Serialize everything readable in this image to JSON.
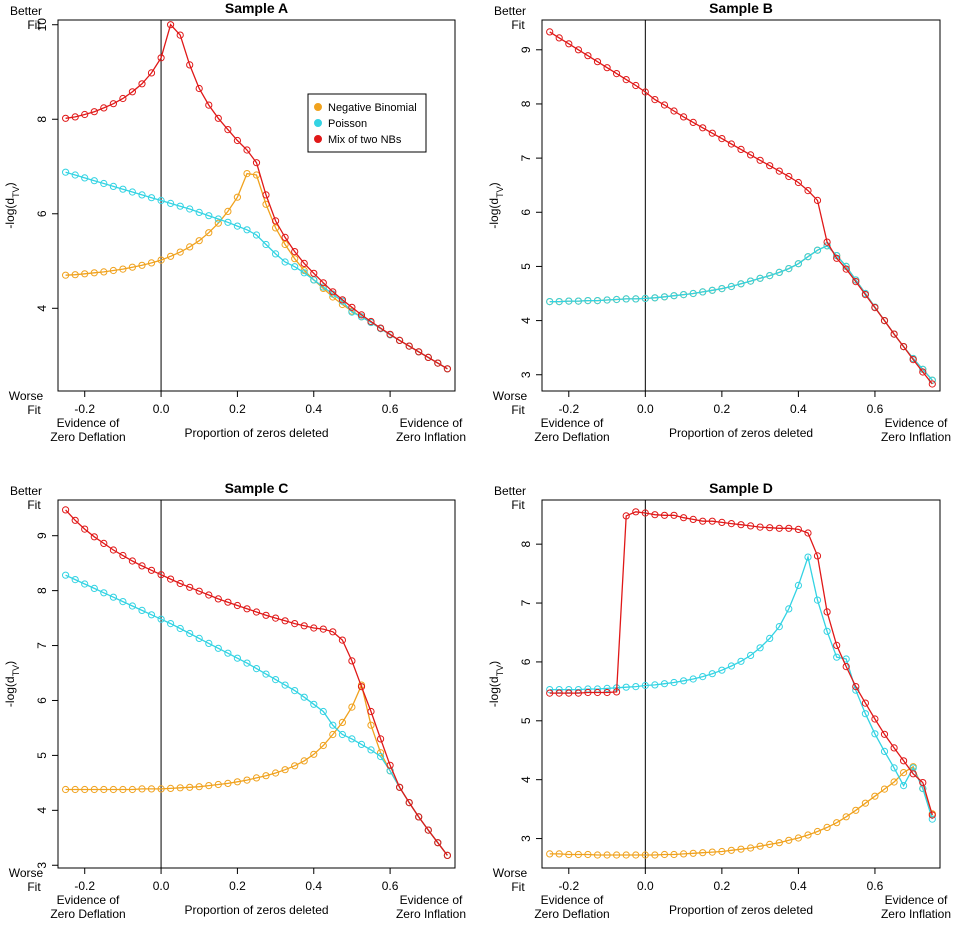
{
  "figure": {
    "better_fit": [
      "Better",
      "Fit"
    ],
    "worse_fit": [
      "Worse",
      "Fit"
    ],
    "ylabel_main": "-log(d",
    "ylabel_sub": "TV",
    "ylabel_close": ")",
    "xlabel": "Proportion of zeros deleted",
    "left_note": [
      "Evidence of",
      "Zero Deflation"
    ],
    "right_note": [
      "Evidence of",
      "Zero Inflation"
    ]
  },
  "legend": {
    "entries": [
      {
        "label": "Negative Binomial",
        "color": "#F0A21E"
      },
      {
        "label": "Poisson",
        "color": "#33D3E3"
      },
      {
        "label": "Mix of two NBs",
        "color": "#E01818"
      }
    ]
  },
  "chart_data": [
    {
      "type": "line",
      "title": "Sample  A",
      "xlabel": "Proportion of zeros deleted",
      "ylabel": "-log(dTV)",
      "xlim": [
        -0.27,
        0.77
      ],
      "ylim": [
        2.25,
        10.1
      ],
      "xticks": [
        -0.2,
        0.0,
        0.2,
        0.4,
        0.6
      ],
      "xtick_labels": [
        "-0.2",
        "0.0",
        "0.2",
        "0.4",
        "0.6"
      ],
      "yticks": [
        4,
        6,
        8,
        10
      ],
      "ytick_labels": [
        "4",
        "6",
        "8",
        "10"
      ],
      "legend": true,
      "series": [
        {
          "name": "Negative Binomial",
          "color": "#F0A21E",
          "x_start": -0.25,
          "x_step": 0.025,
          "values": [
            4.7,
            4.71,
            4.73,
            4.75,
            4.77,
            4.8,
            4.83,
            4.87,
            4.91,
            4.96,
            5.02,
            5.1,
            5.19,
            5.3,
            5.43,
            5.6,
            5.8,
            6.05,
            6.35,
            6.85,
            6.82,
            6.2,
            5.7,
            5.35,
            5.05,
            4.8,
            4.6,
            4.42,
            4.24,
            4.08,
            3.94,
            3.82,
            3.7,
            3.57,
            3.44,
            3.32,
            3.2,
            3.08,
            2.96,
            2.84,
            2.72
          ]
        },
        {
          "name": "Poisson",
          "color": "#33D3E3",
          "x_start": -0.25,
          "x_step": 0.025,
          "values": [
            6.88,
            6.82,
            6.76,
            6.7,
            6.64,
            6.58,
            6.52,
            6.46,
            6.4,
            6.34,
            6.28,
            6.22,
            6.16,
            6.1,
            6.03,
            5.96,
            5.89,
            5.82,
            5.74,
            5.66,
            5.55,
            5.35,
            5.15,
            4.98,
            4.88,
            4.75,
            4.6,
            4.45,
            4.3,
            4.15,
            3.92,
            3.82,
            3.7,
            3.57,
            3.44,
            3.32,
            3.2,
            3.08,
            2.96,
            2.84,
            2.72
          ]
        },
        {
          "name": "Mix of two NBs",
          "color": "#E01818",
          "x_start": -0.25,
          "x_step": 0.025,
          "values": [
            8.02,
            8.05,
            8.1,
            8.16,
            8.24,
            8.33,
            8.44,
            8.58,
            8.75,
            8.98,
            9.3,
            10.0,
            9.78,
            9.15,
            8.65,
            8.3,
            8.02,
            7.78,
            7.55,
            7.35,
            7.08,
            6.4,
            5.85,
            5.5,
            5.2,
            4.95,
            4.74,
            4.54,
            4.35,
            4.18,
            4.02,
            3.86,
            3.72,
            3.58,
            3.45,
            3.32,
            3.2,
            3.08,
            2.96,
            2.84,
            2.72
          ]
        }
      ]
    },
    {
      "type": "line",
      "title": "Sample  B",
      "xlabel": "Proportion of zeros deleted",
      "ylabel": "-log(dTV)",
      "xlim": [
        -0.27,
        0.77
      ],
      "ylim": [
        2.7,
        9.55
      ],
      "xticks": [
        -0.2,
        0.0,
        0.2,
        0.4,
        0.6
      ],
      "xtick_labels": [
        "-0.2",
        "0.0",
        "0.2",
        "0.4",
        "0.6"
      ],
      "yticks": [
        3,
        4,
        5,
        6,
        7,
        8,
        9
      ],
      "ytick_labels": [
        "3",
        "4",
        "5",
        "6",
        "7",
        "8",
        "9"
      ],
      "legend": false,
      "series": [
        {
          "name": "Negative Binomial",
          "color": "#F0A21E",
          "x_start": -0.25,
          "x_step": 0.025,
          "values": [
            4.35,
            4.35,
            4.36,
            4.36,
            4.37,
            4.37,
            4.38,
            4.39,
            4.4,
            4.4,
            4.41,
            4.42,
            4.44,
            4.46,
            4.48,
            4.5,
            4.53,
            4.56,
            4.59,
            4.63,
            4.68,
            4.73,
            4.78,
            4.83,
            4.89,
            4.96,
            5.05,
            5.18,
            5.3,
            5.38,
            5.2,
            5.0,
            4.75,
            4.5,
            4.25,
            4.0,
            3.75,
            3.52,
            3.3,
            3.1,
            2.9
          ]
        },
        {
          "name": "Poisson",
          "color": "#33D3E3",
          "x_start": -0.25,
          "x_step": 0.025,
          "values": [
            4.35,
            4.35,
            4.36,
            4.36,
            4.37,
            4.37,
            4.38,
            4.39,
            4.4,
            4.4,
            4.41,
            4.42,
            4.44,
            4.46,
            4.48,
            4.5,
            4.53,
            4.56,
            4.59,
            4.63,
            4.68,
            4.73,
            4.78,
            4.83,
            4.89,
            4.96,
            5.05,
            5.18,
            5.3,
            5.38,
            5.2,
            5.0,
            4.75,
            4.5,
            4.25,
            4.0,
            3.75,
            3.52,
            3.3,
            3.1,
            2.9
          ]
        },
        {
          "name": "Mix of two NBs",
          "color": "#E01818",
          "x_start": -0.25,
          "x_step": 0.025,
          "values": [
            9.33,
            9.22,
            9.11,
            9.0,
            8.89,
            8.78,
            8.67,
            8.56,
            8.45,
            8.34,
            8.22,
            8.08,
            7.98,
            7.87,
            7.76,
            7.66,
            7.56,
            7.46,
            7.36,
            7.26,
            7.16,
            7.06,
            6.96,
            6.86,
            6.76,
            6.66,
            6.55,
            6.4,
            6.22,
            5.45,
            5.15,
            4.95,
            4.72,
            4.48,
            4.24,
            4.0,
            3.75,
            3.52,
            3.28,
            3.05,
            2.83
          ]
        }
      ]
    },
    {
      "type": "line",
      "title": "Sample  C",
      "xlabel": "Proportion of zeros deleted",
      "ylabel": "-log(dTV)",
      "xlim": [
        -0.27,
        0.77
      ],
      "ylim": [
        2.95,
        9.65
      ],
      "xticks": [
        -0.2,
        0.0,
        0.2,
        0.4,
        0.6
      ],
      "xtick_labels": [
        "-0.2",
        "0.0",
        "0.2",
        "0.4",
        "0.6"
      ],
      "yticks": [
        3,
        4,
        5,
        6,
        7,
        8,
        9
      ],
      "ytick_labels": [
        "3",
        "4",
        "5",
        "6",
        "7",
        "8",
        "9"
      ],
      "legend": false,
      "series": [
        {
          "name": "Negative Binomial",
          "color": "#F0A21E",
          "x_start": -0.25,
          "x_step": 0.025,
          "values": [
            4.38,
            4.38,
            4.38,
            4.38,
            4.38,
            4.38,
            4.38,
            4.38,
            4.39,
            4.39,
            4.39,
            4.4,
            4.41,
            4.42,
            4.43,
            4.45,
            4.47,
            4.49,
            4.52,
            4.55,
            4.59,
            4.63,
            4.68,
            4.74,
            4.81,
            4.9,
            5.02,
            5.18,
            5.38,
            5.6,
            5.88,
            6.28,
            5.55,
            5.05,
            4.72,
            4.42,
            4.14,
            3.88,
            3.64,
            3.41,
            3.18
          ]
        },
        {
          "name": "Poisson",
          "color": "#33D3E3",
          "x_start": -0.25,
          "x_step": 0.025,
          "values": [
            8.28,
            8.2,
            8.12,
            8.04,
            7.96,
            7.88,
            7.8,
            7.72,
            7.64,
            7.56,
            7.48,
            7.4,
            7.31,
            7.22,
            7.13,
            7.04,
            6.95,
            6.86,
            6.77,
            6.68,
            6.58,
            6.48,
            6.38,
            6.28,
            6.18,
            6.06,
            5.93,
            5.8,
            5.55,
            5.38,
            5.3,
            5.2,
            5.1,
            4.98,
            4.72,
            4.42,
            4.14,
            3.88,
            3.64,
            3.41,
            3.18
          ]
        },
        {
          "name": "Mix of two NBs",
          "color": "#E01818",
          "x_start": -0.25,
          "x_step": 0.025,
          "values": [
            9.47,
            9.28,
            9.12,
            8.98,
            8.86,
            8.74,
            8.64,
            8.54,
            8.45,
            8.37,
            8.29,
            8.21,
            8.13,
            8.06,
            7.99,
            7.92,
            7.85,
            7.79,
            7.73,
            7.67,
            7.61,
            7.55,
            7.5,
            7.45,
            7.4,
            7.36,
            7.32,
            7.3,
            7.25,
            7.1,
            6.72,
            6.25,
            5.8,
            5.3,
            4.82,
            4.42,
            4.14,
            3.88,
            3.64,
            3.41,
            3.18
          ]
        }
      ]
    },
    {
      "type": "line",
      "title": "Sample  D",
      "xlabel": "Proportion of zeros deleted",
      "ylabel": "-log(dTV)",
      "xlim": [
        -0.27,
        0.77
      ],
      "ylim": [
        2.5,
        8.75
      ],
      "xticks": [
        -0.2,
        0.0,
        0.2,
        0.4,
        0.6
      ],
      "xtick_labels": [
        "-0.2",
        "0.0",
        "0.2",
        "0.4",
        "0.6"
      ],
      "yticks": [
        3,
        4,
        5,
        6,
        7,
        8
      ],
      "ytick_labels": [
        "3",
        "4",
        "5",
        "6",
        "7",
        "8"
      ],
      "legend": false,
      "series": [
        {
          "name": "Negative Binomial",
          "color": "#F0A21E",
          "x_start": -0.25,
          "x_step": 0.025,
          "values": [
            2.74,
            2.74,
            2.73,
            2.73,
            2.73,
            2.72,
            2.72,
            2.72,
            2.72,
            2.72,
            2.72,
            2.72,
            2.73,
            2.73,
            2.74,
            2.75,
            2.76,
            2.77,
            2.78,
            2.8,
            2.82,
            2.84,
            2.87,
            2.9,
            2.93,
            2.97,
            3.01,
            3.06,
            3.12,
            3.19,
            3.27,
            3.37,
            3.48,
            3.6,
            3.72,
            3.84,
            3.96,
            4.12,
            4.22,
            3.85,
            3.42
          ]
        },
        {
          "name": "Poisson",
          "color": "#33D3E3",
          "x_start": -0.25,
          "x_step": 0.025,
          "values": [
            5.53,
            5.53,
            5.53,
            5.53,
            5.54,
            5.54,
            5.55,
            5.56,
            5.57,
            5.58,
            5.6,
            5.61,
            5.63,
            5.65,
            5.68,
            5.71,
            5.75,
            5.8,
            5.86,
            5.93,
            6.01,
            6.11,
            6.24,
            6.4,
            6.6,
            6.9,
            7.3,
            7.78,
            7.05,
            6.52,
            6.08,
            6.05,
            5.52,
            5.12,
            4.78,
            4.48,
            4.2,
            3.9,
            4.2,
            3.85,
            3.33
          ]
        },
        {
          "name": "Mix of two NBs",
          "color": "#E01818",
          "x_start": -0.25,
          "x_step": 0.025,
          "values": [
            5.47,
            5.47,
            5.47,
            5.47,
            5.48,
            5.48,
            5.48,
            5.49,
            8.48,
            8.55,
            8.53,
            8.5,
            8.49,
            8.49,
            8.45,
            8.42,
            8.39,
            8.39,
            8.37,
            8.35,
            8.33,
            8.31,
            8.29,
            8.28,
            8.27,
            8.27,
            8.25,
            8.19,
            7.8,
            6.85,
            6.28,
            5.92,
            5.58,
            5.3,
            5.03,
            4.77,
            4.54,
            4.32,
            4.1,
            3.95,
            3.4
          ]
        }
      ]
    }
  ]
}
